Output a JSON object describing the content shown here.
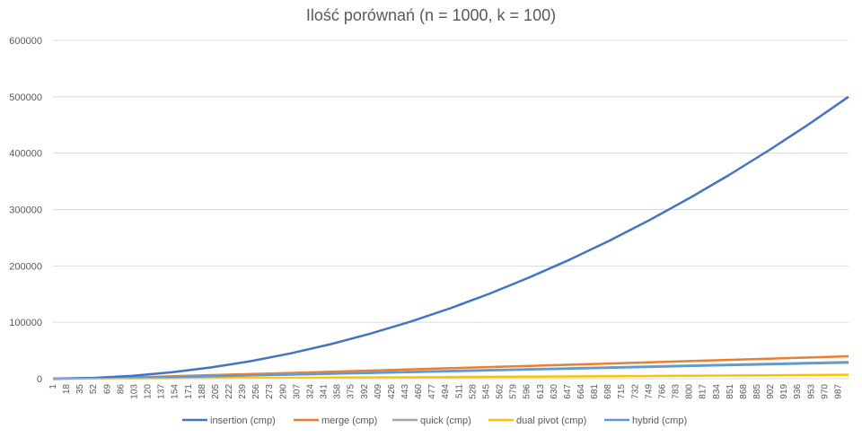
{
  "chart_data": {
    "type": "line",
    "title": "Ilość porównań (n = 1000, k = 100)",
    "xlabel": "",
    "ylabel": "",
    "ylim": [
      0,
      600000
    ],
    "y_ticks": [
      "0",
      "100000",
      "200000",
      "300000",
      "400000",
      "500000",
      "600000"
    ],
    "x_range": [
      1,
      1000
    ],
    "x_tick_labels": [
      "1",
      "18",
      "35",
      "52",
      "69",
      "86",
      "103",
      "120",
      "137",
      "154",
      "171",
      "188",
      "205",
      "222",
      "239",
      "256",
      "273",
      "290",
      "307",
      "324",
      "341",
      "358",
      "375",
      "392",
      "409",
      "426",
      "443",
      "460",
      "477",
      "494",
      "511",
      "528",
      "545",
      "562",
      "579",
      "596",
      "613",
      "630",
      "647",
      "664",
      "681",
      "698",
      "715",
      "732",
      "749",
      "766",
      "783",
      "800",
      "817",
      "834",
      "851",
      "868",
      "885",
      "902",
      "919",
      "936",
      "953",
      "970",
      "987"
    ],
    "grid": "horizontal",
    "legend_position": "bottom",
    "series": [
      {
        "name": "insertion (cmp)",
        "color": "#4472C4",
        "x": [
          1,
          50,
          100,
          150,
          200,
          250,
          300,
          350,
          400,
          450,
          500,
          550,
          600,
          650,
          700,
          750,
          800,
          850,
          900,
          950,
          1000
        ],
        "values": [
          0,
          1250,
          5000,
          11250,
          20000,
          31250,
          45000,
          61250,
          80000,
          101250,
          125000,
          151250,
          180000,
          211250,
          245000,
          281250,
          320000,
          361250,
          405000,
          451250,
          500000
        ]
      },
      {
        "name": "merge (cmp)",
        "color": "#ED7D31",
        "x": [
          1,
          100,
          200,
          300,
          400,
          500,
          600,
          700,
          800,
          900,
          1000
        ],
        "values": [
          0,
          2300,
          6400,
          10200,
          14400,
          18600,
          22800,
          26900,
          31200,
          35500,
          39800
        ]
      },
      {
        "name": "quick (cmp)",
        "color": "#A5A5A5",
        "x": [
          1,
          100,
          200,
          300,
          400,
          500,
          600,
          700,
          800,
          900,
          1000
        ],
        "values": [
          0,
          1600,
          4500,
          7500,
          10600,
          13800,
          16900,
          20000,
          23300,
          26400,
          29600
        ]
      },
      {
        "name": "dual pivot (cmp)",
        "color": "#FFC000",
        "x": [
          1,
          100,
          200,
          300,
          400,
          500,
          600,
          700,
          800,
          900,
          1000
        ],
        "values": [
          0,
          300,
          900,
          1500,
          2200,
          2900,
          3700,
          4500,
          5300,
          6100,
          7000
        ]
      },
      {
        "name": "hybrid (cmp)",
        "color": "#5B9BD5",
        "x": [
          1,
          100,
          200,
          300,
          400,
          500,
          600,
          700,
          800,
          900,
          1000
        ],
        "values": [
          0,
          1500,
          4300,
          7200,
          10200,
          13200,
          16200,
          19300,
          22400,
          25500,
          28500
        ]
      }
    ]
  }
}
